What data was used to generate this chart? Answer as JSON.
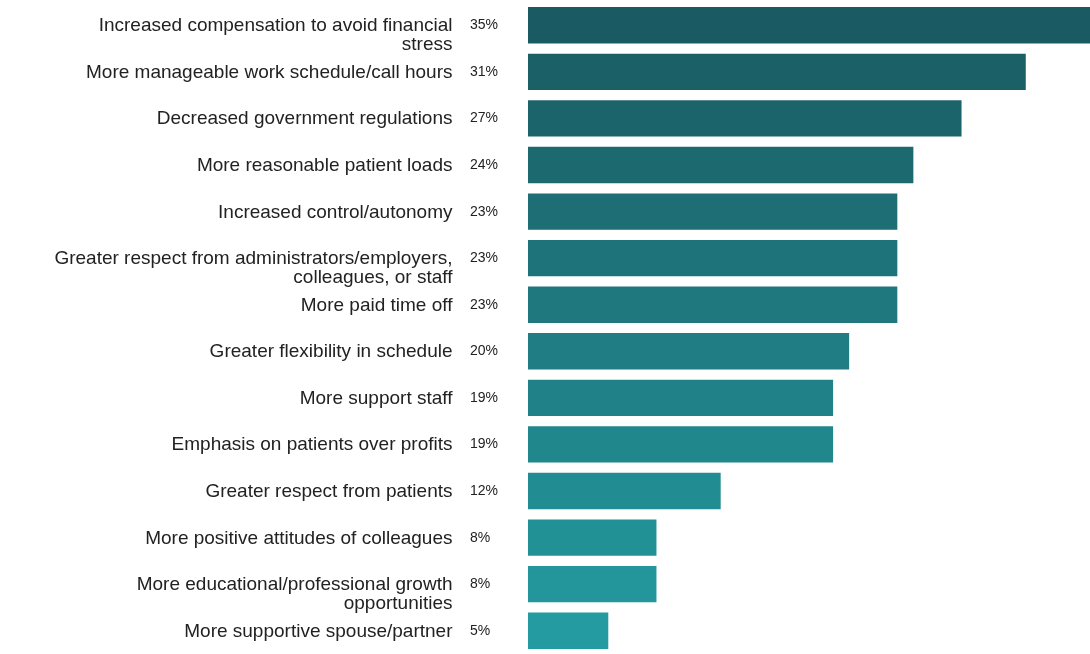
{
  "chart_data": {
    "type": "bar",
    "orientation": "horizontal",
    "categories": [
      "Increased compensation to avoid financial stress",
      "More manageable work schedule/call hours",
      "Decreased government regulations",
      "More reasonable patient loads",
      "Increased control/autonomy",
      "Greater respect from administrators/employers, colleagues, or staff",
      "More paid time off",
      "Greater flexibility in schedule",
      "More support staff",
      "Emphasis on patients over profits",
      "Greater respect from patients",
      "More positive attitudes of colleagues",
      "More educational/professional growth opportunities",
      "More supportive spouse/partner"
    ],
    "values": [
      35,
      31,
      27,
      24,
      23,
      23,
      23,
      20,
      19,
      19,
      12,
      8,
      8,
      5
    ],
    "value_labels": [
      "35%",
      "31%",
      "27%",
      "24%",
      "23%",
      "23%",
      "23%",
      "20%",
      "19%",
      "19%",
      "12%",
      "8%",
      "8%",
      "5%"
    ],
    "colors": [
      "#1a5a62",
      "#1b5f67",
      "#1c646c",
      "#1d6970",
      "#1d6e75",
      "#1e737a",
      "#1e787e",
      "#1f7d83",
      "#208288",
      "#20878c",
      "#218c91",
      "#229196",
      "#22969b",
      "#239ba0"
    ],
    "tick_labels": "y"
  }
}
